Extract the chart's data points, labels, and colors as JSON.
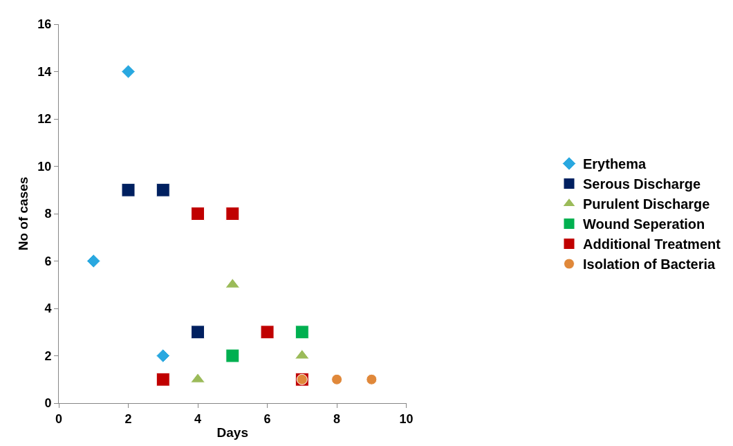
{
  "chart_data": {
    "type": "scatter",
    "xlabel": "Days",
    "ylabel": "No of cases",
    "xlim": [
      0,
      10
    ],
    "xticks": [
      0,
      2,
      4,
      6,
      8,
      10
    ],
    "ylim": [
      0,
      16
    ],
    "yticks": [
      0,
      2,
      4,
      6,
      8,
      10,
      12,
      14,
      16
    ],
    "legend": "right",
    "series": [
      {
        "name": "Erythema",
        "color": "#29a8e0",
        "marker": "diamond",
        "x": [
          1,
          2,
          3
        ],
        "values": [
          6,
          14,
          2
        ]
      },
      {
        "name": "Serous Discharge",
        "color": "#002060",
        "marker": "square",
        "x": [
          2,
          3,
          4
        ],
        "values": [
          9,
          9,
          3
        ]
      },
      {
        "name": "Purulent Discharge",
        "color": "#9bbb59",
        "marker": "triangle",
        "x": [
          4,
          5,
          7
        ],
        "values": [
          1,
          5,
          2
        ]
      },
      {
        "name": "Wound Seperation",
        "color": "#00b050",
        "marker": "square",
        "x": [
          5,
          7
        ],
        "values": [
          2,
          3
        ]
      },
      {
        "name": "Additional Treatment",
        "color": "#c00000",
        "marker": "square",
        "x": [
          3,
          4,
          5,
          6,
          7
        ],
        "values": [
          1,
          8,
          8,
          3,
          1
        ]
      },
      {
        "name": "Isolation of Bacteria",
        "color": "#e0883a",
        "marker": "circle",
        "x": [
          7,
          8,
          9
        ],
        "values": [
          1,
          1,
          1
        ]
      }
    ]
  }
}
